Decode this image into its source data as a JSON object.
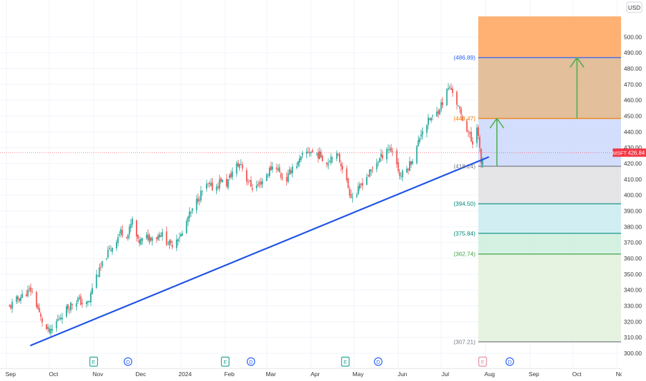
{
  "chart_data": {
    "type": "candlestick",
    "symbol": "MSFT",
    "currency": "USD",
    "last_price": "426.84",
    "last_price_value": 426.84,
    "ylim": [
      297,
      513
    ],
    "y_ticks": [
      300,
      310,
      320,
      330,
      340,
      350,
      360,
      370,
      380,
      390,
      400,
      410,
      420,
      430,
      440,
      450,
      460,
      470,
      480,
      490,
      500
    ],
    "x_ticks": [
      {
        "label": "Sep",
        "day": 0
      },
      {
        "label": "Oct",
        "day": 30
      },
      {
        "label": "Nov",
        "day": 61
      },
      {
        "label": "Dec",
        "day": 91
      },
      {
        "label": "2024",
        "day": 122
      },
      {
        "label": "Feb",
        "day": 153
      },
      {
        "label": "Mar",
        "day": 182
      },
      {
        "label": "Apr",
        "day": 213
      },
      {
        "label": "May",
        "day": 243
      },
      {
        "label": "Jun",
        "day": 274
      },
      {
        "label": "Jul",
        "day": 304
      },
      {
        "label": "Aug",
        "day": 335
      },
      {
        "label": "Sep",
        "day": 366
      },
      {
        "label": "Oct",
        "day": 396
      },
      {
        "label": "Nov",
        "day": 427
      }
    ],
    "price_path": [
      [
        2,
        329
      ],
      [
        6,
        333
      ],
      [
        12,
        337
      ],
      [
        17,
        340
      ],
      [
        20,
        334
      ],
      [
        24,
        322
      ],
      [
        28,
        315
      ],
      [
        31,
        313
      ],
      [
        35,
        320
      ],
      [
        40,
        326
      ],
      [
        45,
        331
      ],
      [
        50,
        334
      ],
      [
        55,
        330
      ],
      [
        58,
        333
      ],
      [
        61,
        346
      ],
      [
        65,
        352
      ],
      [
        70,
        362
      ],
      [
        75,
        369
      ],
      [
        80,
        377
      ],
      [
        85,
        375
      ],
      [
        88,
        384
      ],
      [
        92,
        370
      ],
      [
        96,
        372
      ],
      [
        100,
        374
      ],
      [
        104,
        373
      ],
      [
        108,
        376
      ],
      [
        112,
        371
      ],
      [
        115,
        368
      ],
      [
        120,
        374
      ],
      [
        123,
        375
      ],
      [
        127,
        386
      ],
      [
        130,
        390
      ],
      [
        134,
        398
      ],
      [
        138,
        404
      ],
      [
        141,
        406
      ],
      [
        146,
        404
      ],
      [
        150,
        410
      ],
      [
        153,
        405
      ],
      [
        156,
        411
      ],
      [
        160,
        418
      ],
      [
        164,
        420
      ],
      [
        168,
        410
      ],
      [
        172,
        405
      ],
      [
        176,
        406
      ],
      [
        180,
        410
      ],
      [
        184,
        416
      ],
      [
        188,
        420
      ],
      [
        192,
        412
      ],
      [
        196,
        410
      ],
      [
        200,
        418
      ],
      [
        204,
        420
      ],
      [
        208,
        426
      ],
      [
        212,
        428
      ],
      [
        216,
        426
      ],
      [
        220,
        425
      ],
      [
        224,
        420
      ],
      [
        228,
        426
      ],
      [
        232,
        424
      ],
      [
        235,
        418
      ],
      [
        238,
        408
      ],
      [
        240,
        402
      ],
      [
        243,
        397
      ],
      [
        246,
        403
      ],
      [
        250,
        410
      ],
      [
        254,
        414
      ],
      [
        258,
        420
      ],
      [
        262,
        424
      ],
      [
        266,
        430
      ],
      [
        270,
        428
      ],
      [
        273,
        420
      ],
      [
        275,
        412
      ],
      [
        278,
        414
      ],
      [
        281,
        418
      ],
      [
        284,
        423
      ],
      [
        287,
        430
      ],
      [
        290,
        440
      ],
      [
        293,
        444
      ],
      [
        296,
        448
      ],
      [
        300,
        450
      ],
      [
        303,
        456
      ],
      [
        306,
        460
      ],
      [
        309,
        468
      ],
      [
        312,
        466
      ],
      [
        315,
        458
      ],
      [
        318,
        450
      ],
      [
        320,
        446
      ],
      [
        323,
        440
      ],
      [
        325,
        434
      ],
      [
        327,
        432
      ],
      [
        329,
        445
      ],
      [
        331,
        428
      ],
      [
        332,
        420
      ],
      [
        334,
        425
      ],
      [
        335,
        426.84
      ]
    ],
    "trendline": {
      "start": {
        "day": 17,
        "price": 305
      },
      "end": {
        "day": 337,
        "price": 424
      }
    },
    "fib_levels": [
      {
        "label": "(486.89)",
        "value": 486.89,
        "color": "#2962ff"
      },
      {
        "label": "(448.47)",
        "value": 448.47,
        "color": "#f57c00"
      },
      {
        "label": "(418.24)",
        "value": 418.24,
        "color": "#787b86"
      },
      {
        "label": "(394.50)",
        "value": 394.5,
        "color": "#00897b"
      },
      {
        "label": "(375.84)",
        "value": 375.84,
        "color": "#00897b"
      },
      {
        "label": "(362.74)",
        "value": 362.74,
        "color": "#43a047"
      },
      {
        "label": "(307.21)",
        "value": 307.21,
        "color": "#787b86"
      }
    ],
    "fib_zones": [
      {
        "from": 486.89,
        "to": 513,
        "color": "#ffa35a",
        "opacity": 0.85
      },
      {
        "from": 448.47,
        "to": 486.89,
        "color": "#deb48a",
        "opacity": 0.85
      },
      {
        "from": 418.24,
        "to": 448.47,
        "color": "#cbd8fb",
        "opacity": 0.85
      },
      {
        "from": 394.5,
        "to": 418.24,
        "color": "#e0e0e3",
        "opacity": 0.85
      },
      {
        "from": 375.84,
        "to": 394.5,
        "color": "#c9ecf0",
        "opacity": 0.85
      },
      {
        "from": 362.74,
        "to": 375.84,
        "color": "#cdeedd",
        "opacity": 0.85
      },
      {
        "from": 307.21,
        "to": 362.74,
        "color": "#e3f1dc",
        "opacity": 0.85
      }
    ],
    "arrows": [
      {
        "day": 343,
        "from": 418.24,
        "to": 448.47,
        "color": "#4caf50"
      },
      {
        "day": 399,
        "from": 448.47,
        "to": 486.89,
        "color": "#4caf50"
      }
    ],
    "events": [
      {
        "label": "E",
        "day": 61,
        "kind": "earnings"
      },
      {
        "label": "D",
        "day": 85,
        "kind": "dividend"
      },
      {
        "label": "E",
        "day": 153,
        "kind": "earnings"
      },
      {
        "label": "D",
        "day": 171,
        "kind": "dividend"
      },
      {
        "label": "E",
        "day": 237,
        "kind": "earnings"
      },
      {
        "label": "D",
        "day": 260,
        "kind": "dividend"
      },
      {
        "label": "E",
        "day": 333,
        "kind": "earnings-upcoming"
      },
      {
        "label": "D",
        "day": 352,
        "kind": "dividend"
      }
    ],
    "colors": {
      "up": "#26a69a",
      "down": "#ef5350",
      "trendline": "#1e53e5",
      "grid": "#f0f3fa",
      "price_badge": "#f23645",
      "price_line": "#f23645"
    }
  }
}
